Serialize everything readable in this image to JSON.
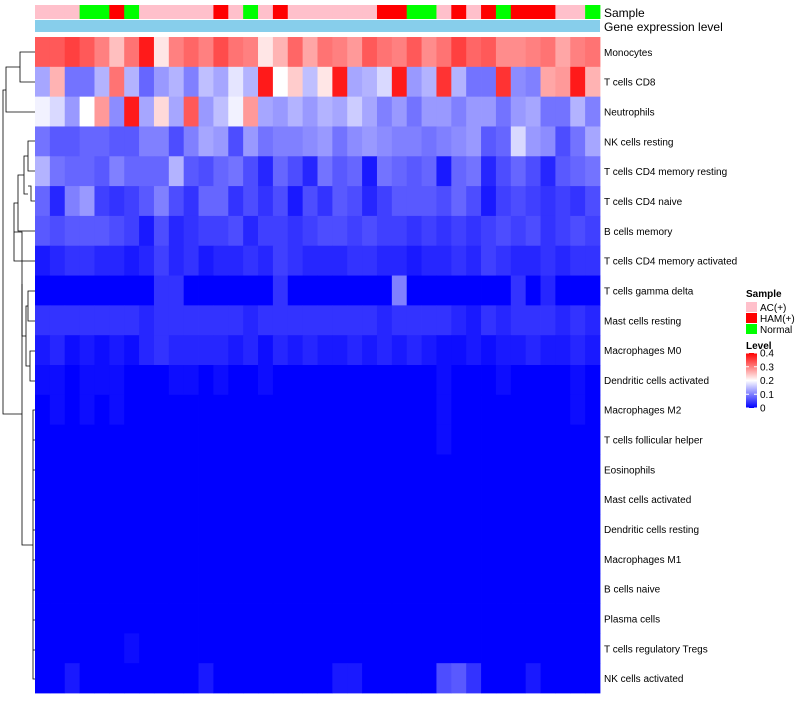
{
  "chart_data": {
    "type": "heatmap",
    "annotation_labels": {
      "sample": "Sample",
      "expression": "Gene expression level"
    },
    "rows": [
      "Monocytes",
      "T cells CD8",
      "Neutrophils",
      "NK cells resting",
      "T cells CD4 memory resting",
      "T cells CD4 naive",
      "B cells memory",
      "T cells CD4 memory activated",
      "T cells gamma delta",
      "Mast cells resting",
      "Macrophages M0",
      "Dendritic cells activated",
      "Macrophages M2",
      "T cells follicular helper",
      "Eosinophils",
      "Mast cells activated",
      "Dendritic cells resting",
      "Macrophages M1",
      "B cells naive",
      "Plasma cells",
      "T cells regulatory  Tregs",
      "NK cells activated"
    ],
    "sample_groups": [
      "AC",
      "AC",
      "AC",
      "N",
      "N",
      "H",
      "N",
      "AC",
      "AC",
      "AC",
      "AC",
      "AC",
      "H",
      "AC",
      "N",
      "AC",
      "H",
      "AC",
      "AC",
      "AC",
      "AC",
      "AC",
      "AC",
      "H",
      "H",
      "N",
      "N",
      "AC",
      "H",
      "AC",
      "H",
      "N",
      "H",
      "H",
      "H",
      "AC",
      "AC",
      "N"
    ],
    "values": [
      [
        0.33,
        0.33,
        0.35,
        0.33,
        0.3,
        0.25,
        0.31,
        0.38,
        0.22,
        0.3,
        0.32,
        0.3,
        0.34,
        0.31,
        0.3,
        0.22,
        0.26,
        0.32,
        0.27,
        0.31,
        0.3,
        0.28,
        0.33,
        0.31,
        0.3,
        0.33,
        0.29,
        0.31,
        0.35,
        0.32,
        0.33,
        0.29,
        0.29,
        0.3,
        0.31,
        0.27,
        0.3,
        0.31
      ],
      [
        0.13,
        0.26,
        0.09,
        0.09,
        0.14,
        0.31,
        0.14,
        0.08,
        0.12,
        0.14,
        0.1,
        0.15,
        0.13,
        0.18,
        0.14,
        0.38,
        0.2,
        0.24,
        0.15,
        0.22,
        0.38,
        0.13,
        0.14,
        0.17,
        0.38,
        0.12,
        0.14,
        0.36,
        0.14,
        0.09,
        0.09,
        0.36,
        0.11,
        0.1,
        0.27,
        0.28,
        0.38,
        0.26
      ],
      [
        0.19,
        0.17,
        0.12,
        0.2,
        0.28,
        0.11,
        0.38,
        0.13,
        0.23,
        0.13,
        0.33,
        0.12,
        0.15,
        0.19,
        0.28,
        0.13,
        0.12,
        0.14,
        0.12,
        0.14,
        0.13,
        0.16,
        0.13,
        0.1,
        0.12,
        0.09,
        0.12,
        0.12,
        0.1,
        0.12,
        0.12,
        0.09,
        0.12,
        0.13,
        0.09,
        0.09,
        0.14,
        0.1
      ],
      [
        0.09,
        0.07,
        0.07,
        0.08,
        0.08,
        0.07,
        0.07,
        0.1,
        0.1,
        0.06,
        0.1,
        0.13,
        0.12,
        0.06,
        0.12,
        0.09,
        0.1,
        0.1,
        0.11,
        0.12,
        0.09,
        0.11,
        0.12,
        0.11,
        0.1,
        0.1,
        0.09,
        0.1,
        0.11,
        0.12,
        0.07,
        0.08,
        0.17,
        0.12,
        0.11,
        0.06,
        0.09,
        0.13
      ],
      [
        0.14,
        0.09,
        0.08,
        0.08,
        0.07,
        0.1,
        0.08,
        0.08,
        0.08,
        0.14,
        0.07,
        0.06,
        0.08,
        0.09,
        0.06,
        0.03,
        0.08,
        0.06,
        0.03,
        0.09,
        0.07,
        0.08,
        0.02,
        0.09,
        0.08,
        0.07,
        0.08,
        0.02,
        0.08,
        0.09,
        0.03,
        0.06,
        0.08,
        0.06,
        0.03,
        0.07,
        0.08,
        0.09
      ],
      [
        0.08,
        0.03,
        0.1,
        0.12,
        0.05,
        0.04,
        0.05,
        0.07,
        0.1,
        0.06,
        0.04,
        0.08,
        0.08,
        0.04,
        0.06,
        0.04,
        0.06,
        0.02,
        0.06,
        0.04,
        0.07,
        0.06,
        0.03,
        0.05,
        0.07,
        0.07,
        0.07,
        0.06,
        0.08,
        0.06,
        0.02,
        0.05,
        0.06,
        0.05,
        0.04,
        0.05,
        0.04,
        0.06
      ],
      [
        0.07,
        0.06,
        0.07,
        0.07,
        0.07,
        0.06,
        0.05,
        0.02,
        0.06,
        0.03,
        0.04,
        0.05,
        0.05,
        0.06,
        0.03,
        0.05,
        0.05,
        0.04,
        0.05,
        0.06,
        0.06,
        0.05,
        0.06,
        0.05,
        0.05,
        0.04,
        0.05,
        0.04,
        0.05,
        0.04,
        0.05,
        0.06,
        0.05,
        0.06,
        0.04,
        0.05,
        0.06,
        0.05
      ],
      [
        0.02,
        0.03,
        0.04,
        0.04,
        0.03,
        0.03,
        0.02,
        0.03,
        0.05,
        0.03,
        0.04,
        0.02,
        0.03,
        0.03,
        0.04,
        0.03,
        0.05,
        0.04,
        0.03,
        0.03,
        0.03,
        0.04,
        0.04,
        0.03,
        0.03,
        0.02,
        0.03,
        0.03,
        0.04,
        0.03,
        0.05,
        0.04,
        0.03,
        0.03,
        0.04,
        0.03,
        0.04,
        0.04
      ],
      [
        0.0,
        0.0,
        0.0,
        0.0,
        0.0,
        0.0,
        0.0,
        0.0,
        0.04,
        0.04,
        0.0,
        0.0,
        0.0,
        0.0,
        0.0,
        0.0,
        0.04,
        0.0,
        0.0,
        0.0,
        0.0,
        0.0,
        0.0,
        0.0,
        0.1,
        0.0,
        0.0,
        0.0,
        0.0,
        0.0,
        0.0,
        0.0,
        0.04,
        0.0,
        0.03,
        0.0,
        0.0,
        0.0
      ],
      [
        0.04,
        0.04,
        0.04,
        0.04,
        0.04,
        0.04,
        0.04,
        0.03,
        0.04,
        0.04,
        0.04,
        0.04,
        0.04,
        0.04,
        0.03,
        0.04,
        0.04,
        0.04,
        0.04,
        0.04,
        0.04,
        0.04,
        0.04,
        0.03,
        0.04,
        0.04,
        0.04,
        0.04,
        0.03,
        0.02,
        0.04,
        0.03,
        0.04,
        0.04,
        0.04,
        0.03,
        0.04,
        0.03
      ],
      [
        0.02,
        0.03,
        0.01,
        0.02,
        0.01,
        0.02,
        0.01,
        0.03,
        0.04,
        0.03,
        0.03,
        0.03,
        0.03,
        0.02,
        0.03,
        0.01,
        0.03,
        0.02,
        0.03,
        0.02,
        0.02,
        0.03,
        0.02,
        0.03,
        0.02,
        0.03,
        0.02,
        0.01,
        0.01,
        0.02,
        0.01,
        0.02,
        0.02,
        0.03,
        0.02,
        0.02,
        0.03,
        0.02
      ],
      [
        0.01,
        0.01,
        0.0,
        0.01,
        0.01,
        0.01,
        0.0,
        0.0,
        0.0,
        0.01,
        0.01,
        0.0,
        0.01,
        0.0,
        0.0,
        0.01,
        0.0,
        0.0,
        0.0,
        0.0,
        0.0,
        0.0,
        0.0,
        0.0,
        0.0,
        0.0,
        0.0,
        0.01,
        0.0,
        0.0,
        0.0,
        0.01,
        0.0,
        0.0,
        0.0,
        0.0,
        0.01,
        0.0
      ],
      [
        0.0,
        0.01,
        0.0,
        0.01,
        0.0,
        0.01,
        0.0,
        0.0,
        0.0,
        0.0,
        0.0,
        0.0,
        0.0,
        0.0,
        0.0,
        0.0,
        0.0,
        0.0,
        0.0,
        0.0,
        0.0,
        0.0,
        0.0,
        0.0,
        0.0,
        0.0,
        0.0,
        0.01,
        0.0,
        0.0,
        0.0,
        0.0,
        0.0,
        0.0,
        0.0,
        0.0,
        0.01,
        0.0
      ],
      [
        0.0,
        0.0,
        0.0,
        0.0,
        0.0,
        0.0,
        0.0,
        0.0,
        0.0,
        0.0,
        0.0,
        0.0,
        0.0,
        0.0,
        0.0,
        0.0,
        0.0,
        0.0,
        0.0,
        0.0,
        0.0,
        0.0,
        0.0,
        0.0,
        0.0,
        0.0,
        0.0,
        0.01,
        0.0,
        0.0,
        0.0,
        0.0,
        0.0,
        0.0,
        0.0,
        0.0,
        0.0,
        0.0
      ],
      [
        0.0,
        0.0,
        0.0,
        0.0,
        0.0,
        0.0,
        0.0,
        0.0,
        0.0,
        0.0,
        0.0,
        0.0,
        0.0,
        0.0,
        0.0,
        0.0,
        0.0,
        0.0,
        0.0,
        0.0,
        0.0,
        0.0,
        0.0,
        0.0,
        0.0,
        0.0,
        0.0,
        0.0,
        0.0,
        0.0,
        0.0,
        0.0,
        0.0,
        0.0,
        0.0,
        0.0,
        0.0,
        0.0
      ],
      [
        0.0,
        0.0,
        0.0,
        0.0,
        0.0,
        0.0,
        0.0,
        0.0,
        0.0,
        0.0,
        0.0,
        0.0,
        0.0,
        0.0,
        0.0,
        0.0,
        0.0,
        0.0,
        0.0,
        0.0,
        0.0,
        0.0,
        0.0,
        0.0,
        0.0,
        0.0,
        0.0,
        0.0,
        0.0,
        0.0,
        0.0,
        0.0,
        0.0,
        0.0,
        0.0,
        0.0,
        0.0,
        0.0
      ],
      [
        0.0,
        0.0,
        0.0,
        0.0,
        0.0,
        0.0,
        0.0,
        0.0,
        0.0,
        0.0,
        0.0,
        0.0,
        0.0,
        0.0,
        0.0,
        0.0,
        0.0,
        0.0,
        0.0,
        0.0,
        0.0,
        0.0,
        0.0,
        0.0,
        0.0,
        0.0,
        0.0,
        0.0,
        0.0,
        0.0,
        0.0,
        0.0,
        0.0,
        0.0,
        0.0,
        0.0,
        0.0,
        0.0
      ],
      [
        0.0,
        0.0,
        0.0,
        0.0,
        0.0,
        0.0,
        0.0,
        0.0,
        0.0,
        0.0,
        0.0,
        0.0,
        0.0,
        0.0,
        0.0,
        0.0,
        0.0,
        0.0,
        0.0,
        0.0,
        0.0,
        0.0,
        0.0,
        0.0,
        0.0,
        0.0,
        0.0,
        0.0,
        0.0,
        0.0,
        0.0,
        0.0,
        0.0,
        0.0,
        0.0,
        0.0,
        0.0,
        0.0
      ],
      [
        0.0,
        0.0,
        0.0,
        0.0,
        0.0,
        0.0,
        0.0,
        0.0,
        0.0,
        0.0,
        0.0,
        0.0,
        0.0,
        0.0,
        0.0,
        0.0,
        0.0,
        0.0,
        0.0,
        0.0,
        0.0,
        0.0,
        0.0,
        0.0,
        0.0,
        0.0,
        0.0,
        0.0,
        0.0,
        0.0,
        0.0,
        0.0,
        0.0,
        0.0,
        0.0,
        0.0,
        0.0,
        0.0
      ],
      [
        0.0,
        0.0,
        0.0,
        0.0,
        0.0,
        0.0,
        0.0,
        0.0,
        0.0,
        0.0,
        0.0,
        0.0,
        0.0,
        0.0,
        0.0,
        0.0,
        0.0,
        0.0,
        0.0,
        0.0,
        0.0,
        0.0,
        0.0,
        0.0,
        0.0,
        0.0,
        0.0,
        0.0,
        0.0,
        0.0,
        0.0,
        0.0,
        0.0,
        0.0,
        0.0,
        0.0,
        0.0,
        0.0
      ],
      [
        0.0,
        0.0,
        0.0,
        0.0,
        0.0,
        0.0,
        0.01,
        0.0,
        0.0,
        0.0,
        0.0,
        0.0,
        0.0,
        0.0,
        0.0,
        0.0,
        0.0,
        0.0,
        0.0,
        0.0,
        0.0,
        0.0,
        0.0,
        0.0,
        0.0,
        0.0,
        0.0,
        0.0,
        0.0,
        0.0,
        0.0,
        0.0,
        0.0,
        0.0,
        0.0,
        0.0,
        0.0,
        0.0
      ],
      [
        0.0,
        0.0,
        0.02,
        0.0,
        0.0,
        0.0,
        0.0,
        0.0,
        0.0,
        0.0,
        0.0,
        0.02,
        0.0,
        0.0,
        0.0,
        0.0,
        0.0,
        0.0,
        0.0,
        0.0,
        0.02,
        0.02,
        0.0,
        0.0,
        0.0,
        0.0,
        0.0,
        0.06,
        0.07,
        0.04,
        0.0,
        0.0,
        0.0,
        0.02,
        0.0,
        0.0,
        0.0,
        0.0
      ]
    ],
    "legend": {
      "sample_title": "Sample",
      "sample_entries": [
        {
          "key": "AC",
          "label": "AC(+)",
          "color": "#FFC0CB"
        },
        {
          "key": "H",
          "label": "HAM(+)",
          "color": "#FF0000"
        },
        {
          "key": "N",
          "label": "Normal",
          "color": "#00FF00"
        }
      ],
      "level_title": "Level",
      "level_ticks": [
        0.4,
        0.3,
        0.2,
        0.1,
        0
      ],
      "level_tick_labels": [
        "0.4",
        "0.3",
        "0.2",
        "0.1",
        "0"
      ],
      "range": [
        0,
        0.4
      ]
    },
    "colors": {
      "low": "#0000FF",
      "mid": "#FFFFFF",
      "high": "#FF0000",
      "expression_bar": "#87CEEB"
    }
  }
}
